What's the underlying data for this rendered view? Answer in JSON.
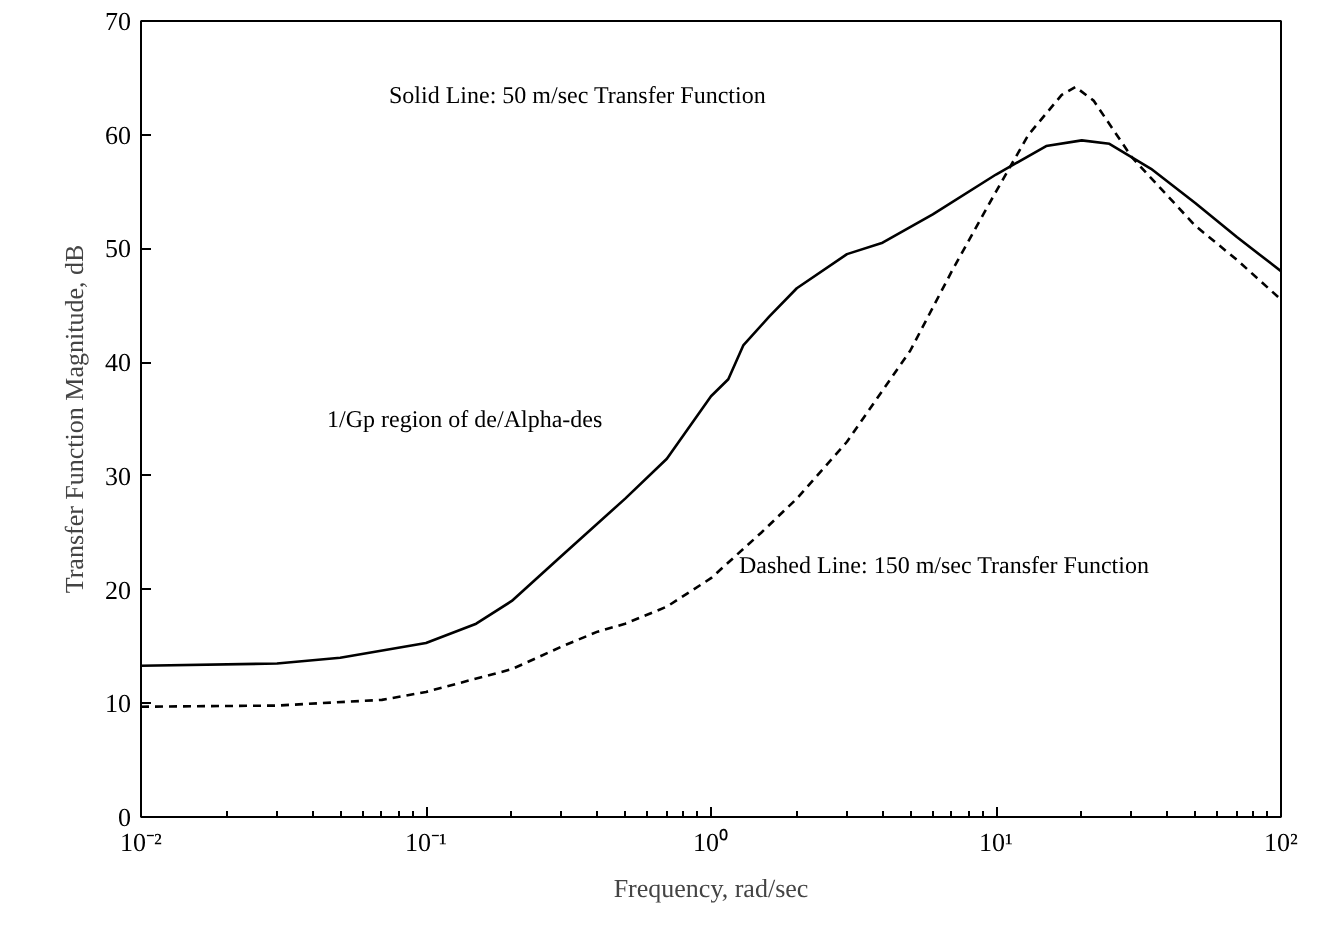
{
  "chart_data": {
    "type": "line",
    "xlabel": "Frequency, rad/sec",
    "ylabel": "Transfer Function Magnitude, dB",
    "log": "x",
    "grid": false,
    "marker": "none",
    "xlim": [
      0.01,
      100
    ],
    "ylim": [
      0,
      70
    ],
    "xticks": [
      {
        "value": 0.01,
        "label": "10⁻²"
      },
      {
        "value": 0.1,
        "label": "10⁻¹"
      },
      {
        "value": 1,
        "label": "10⁰"
      },
      {
        "value": 10,
        "label": "10¹"
      },
      {
        "value": 100,
        "label": "10²"
      }
    ],
    "yticks": [
      0,
      10,
      20,
      30,
      40,
      50,
      60,
      70
    ],
    "series": [
      {
        "color": "#000000",
        "line_style": "solid",
        "x": [
          0.01,
          0.03,
          0.05,
          0.1,
          0.15,
          0.2,
          0.3,
          0.5,
          0.7,
          1.0,
          1.15,
          1.3,
          1.6,
          2,
          3,
          4,
          6,
          10,
          15,
          20,
          25,
          35,
          50,
          70,
          100
        ],
        "values": [
          13.3,
          13.5,
          14,
          15.3,
          17,
          19,
          23,
          28,
          31.5,
          37,
          38.5,
          41.5,
          44,
          46.5,
          49.5,
          50.5,
          53,
          56.5,
          59,
          59.5,
          59.2,
          57,
          54,
          51,
          48
        ]
      },
      {
        "color": "#000000",
        "line_style": "dashed",
        "x": [
          0.01,
          0.03,
          0.07,
          0.1,
          0.2,
          0.3,
          0.4,
          0.5,
          0.7,
          1.0,
          1.5,
          2,
          3,
          5,
          7,
          10,
          13,
          17,
          19,
          22,
          30,
          50,
          70,
          100
        ],
        "values": [
          9.7,
          9.8,
          10.3,
          11,
          13,
          15,
          16.3,
          17,
          18.5,
          21,
          25,
          28,
          33,
          41,
          48,
          55,
          60,
          63.5,
          64.2,
          63,
          58,
          52,
          49,
          45.5
        ]
      }
    ],
    "annotations": [
      "Solid Line: 50 m/sec Transfer Function",
      "1/Gp region of de/Alpha-des",
      "Dashed Line: 150 m/sec Transfer Function"
    ]
  }
}
